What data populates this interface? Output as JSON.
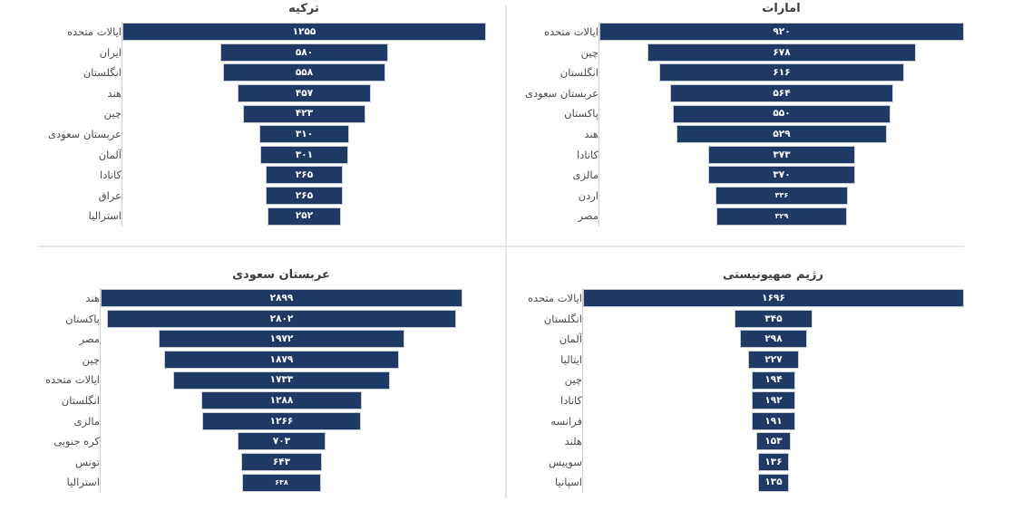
{
  "page": {
    "background": "#ffffff"
  },
  "style": {
    "bar_color": "#1f3a64",
    "bar_border_color": "#c8ccd2",
    "value_color": "#ffffff",
    "label_color": "#4a4a4a",
    "title_color": "#3d3d3d",
    "axis_line_color": "#cfcfcf",
    "divider_color": "#e8e8e8"
  },
  "chart_data": [
    {
      "type": "bar",
      "subtype": "centered-funnel",
      "title": "ترکیه",
      "category_axis_side": "left",
      "value_position": "inside-center",
      "categories": [
        "ایالات متحده",
        "ایران",
        "انگلستان",
        "هند",
        "چین",
        "عربستان سعودی",
        "آلمان",
        "کانادا",
        "عراق",
        "استرالیا"
      ],
      "values": [
        1255,
        580,
        558,
        457,
        423,
        310,
        301,
        265,
        265,
        252
      ],
      "value_labels": [
        "۱۲۵۵",
        "۵۸۰",
        "۵۵۸",
        "۴۵۷",
        "۴۲۳",
        "۳۱۰",
        "۳۰۱",
        "۲۶۵",
        "۲۶۵",
        "۲۵۲"
      ],
      "xmax": 1255
    },
    {
      "type": "bar",
      "subtype": "centered-funnel",
      "title": "امارات",
      "category_axis_side": "left",
      "value_position": "inside-center",
      "categories": [
        "ایالات متحده",
        "چین",
        "انگلستان",
        "عربستان سعودی",
        "پاکستان",
        "هند",
        "کانادا",
        "مالزی",
        "اردن",
        "مصر"
      ],
      "values": [
        920,
        678,
        616,
        564,
        550,
        529,
        373,
        370,
        336,
        329
      ],
      "value_labels": [
        "۹۲۰",
        "۶۷۸",
        "۶۱۶",
        "۵۶۴",
        "۵۵۰",
        "۵۲۹",
        "۳۷۳",
        "۳۷۰",
        "۳۳۶",
        "۳۲۹"
      ],
      "xmax": 920
    },
    {
      "type": "bar",
      "subtype": "centered-funnel",
      "title": "عربستان سعودی",
      "category_axis_side": "left",
      "value_position": "inside-center",
      "categories": [
        "هند",
        "پاکستان",
        "مصر",
        "چین",
        "ایالات متحده",
        "انگلستان",
        "مالزی",
        "کره جنوبی",
        "تونس",
        "استرالیا"
      ],
      "values": [
        2899,
        2802,
        1972,
        1879,
        1733,
        1288,
        1266,
        703,
        643,
        638
      ],
      "value_labels": [
        "۲۸۹۹",
        "۲۸۰۲",
        "۱۹۷۲",
        "۱۸۷۹",
        "۱۷۳۳",
        "۱۲۸۸",
        "۱۲۶۶",
        "۷۰۳",
        "۶۴۳",
        "۶۳۸"
      ],
      "xmax": 2899
    },
    {
      "type": "bar",
      "subtype": "centered-funnel",
      "title": "رژیم صهیونیستی",
      "category_axis_side": "left",
      "value_position": "inside-center",
      "categories": [
        "ایالات متحده",
        "انگلستان",
        "آلمان",
        "ایتالیا",
        "چین",
        "کانادا",
        "فرانسه",
        "هلند",
        "سوییس",
        "اسپانیا"
      ],
      "values": [
        1696,
        345,
        298,
        227,
        194,
        192,
        191,
        153,
        136,
        135
      ],
      "value_labels": [
        "۱۶۹۶",
        "۳۴۵",
        "۲۹۸",
        "۲۲۷",
        "۱۹۴",
        "۱۹۲",
        "۱۹۱",
        "۱۵۳",
        "۱۳۶",
        "۱۳۵"
      ],
      "xmax": 1696
    }
  ]
}
